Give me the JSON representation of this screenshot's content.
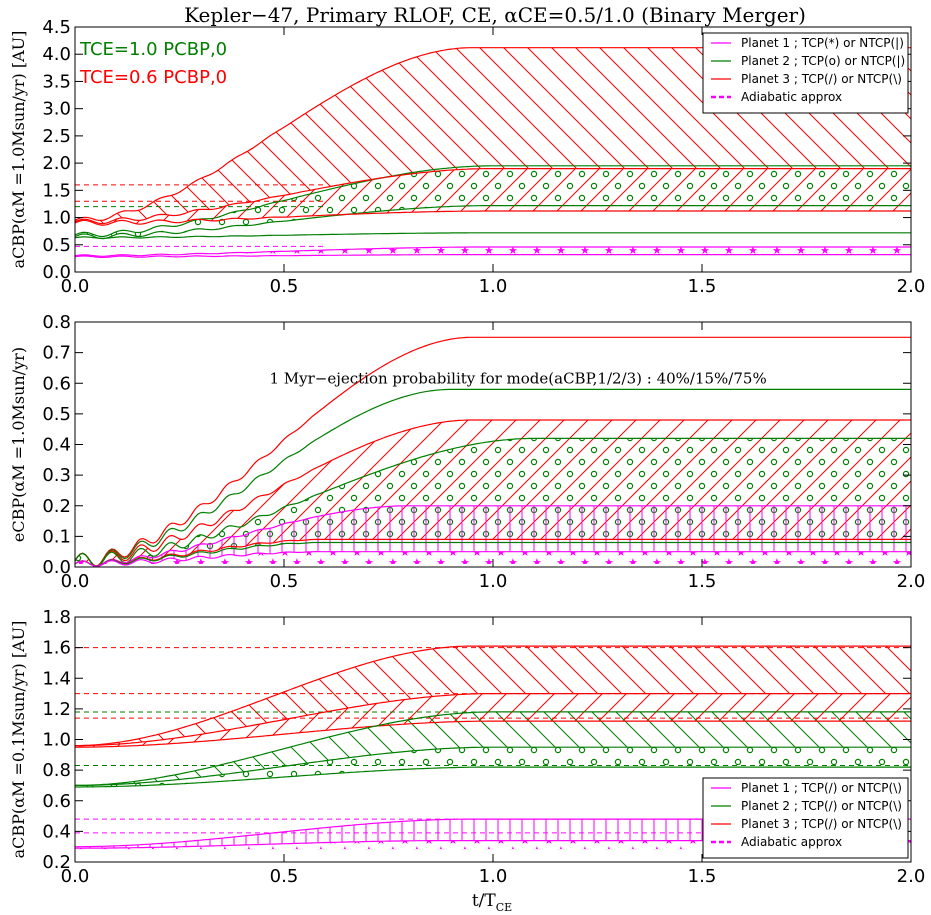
{
  "figure": {
    "title": "Kepler−47, Primary RLOF, CE, αCE=0.5/1.0 (Binary Merger)",
    "xlabel": "t/T",
    "xlabel_sub": "CE"
  },
  "colors": {
    "planet1": "#ff00ff",
    "planet2": "#007f00",
    "planet3": "#ff0000",
    "frame": "#000000",
    "background": "#ffffff"
  },
  "chart_data": [
    {
      "type": "line",
      "panel": "top",
      "ylabel": "aCBP(αM =1.0Msun/yr) [AU]",
      "xlim": [
        0,
        2.0
      ],
      "ylim": [
        0,
        4.5
      ],
      "xticks": [
        "0.0",
        "0.5",
        "1.0",
        "1.5",
        "2.0"
      ],
      "yticks": [
        "0.0",
        "0.5",
        "1.0",
        "1.5",
        "2.0",
        "2.5",
        "3.0",
        "3.5",
        "4.0",
        "4.5"
      ],
      "annotations": [
        "TCE=1.0 PCBP,0",
        "TCE=0.6 PCBP,0"
      ],
      "legend": {
        "placement": "top-right",
        "entries": [
          "Planet 1 ; TCP(*) or NTCP(|)",
          "Planet 2 ; TCP(o) or NTCP(|)",
          "Planet 3 ; TCP(/) or NTCP(\\)",
          "Adiabatic approx"
        ]
      },
      "series": [
        {
          "name": "Planet 1 upper",
          "color": "planet1",
          "start": 0.3,
          "end": 0.46,
          "t_end": 1.0,
          "hatch": "*"
        },
        {
          "name": "Planet 1 lower",
          "color": "planet1",
          "start": 0.28,
          "end": 0.32,
          "t_end": 1.0
        },
        {
          "name": "Planet 2 upper",
          "color": "planet2",
          "start": 0.68,
          "end": 1.95,
          "t_end": 1.0,
          "hatch": "o"
        },
        {
          "name": "Planet 2 mid",
          "color": "planet2",
          "start": 0.65,
          "end": 1.22,
          "t_end": 1.0
        },
        {
          "name": "Planet 2 lower",
          "color": "planet2",
          "start": 0.63,
          "end": 0.72,
          "t_end": 1.0
        },
        {
          "name": "Planet 3 upper",
          "color": "planet3",
          "start": 0.95,
          "end": 4.12,
          "t_end": 0.95,
          "hatch": "\\"
        },
        {
          "name": "Planet 3 mid",
          "color": "planet3",
          "start": 0.92,
          "end": 1.9,
          "t_end": 1.0,
          "hatch": "/"
        },
        {
          "name": "Planet 3 lower",
          "color": "planet3",
          "start": 0.9,
          "end": 1.12,
          "t_end": 1.0
        }
      ],
      "adiabatic": [
        {
          "color": "planet1",
          "y": 0.47,
          "x_end": 0.6
        },
        {
          "color": "planet2",
          "y": 1.2,
          "x_end": 0.6
        },
        {
          "color": "planet3",
          "y": 1.6,
          "x_end": 0.6
        },
        {
          "color": "planet3",
          "y": 1.3,
          "x_end": 0.6
        }
      ]
    },
    {
      "type": "line",
      "panel": "middle",
      "ylabel": "eCBP(αM =1.0Msun/yr)",
      "xlim": [
        0,
        2.0
      ],
      "ylim": [
        0,
        0.8
      ],
      "xticks": [
        "0.0",
        "0.5",
        "1.0",
        "1.5",
        "2.0"
      ],
      "yticks": [
        "0.0",
        "0.1",
        "0.2",
        "0.3",
        "0.4",
        "0.5",
        "0.6",
        "0.7",
        "0.8"
      ],
      "annotation": "1 Myr−ejection probability for mode(aCBP,1/2/3) : 40%/15%/75%",
      "series": [
        {
          "name": "Planet 3 max",
          "color": "planet3",
          "start": 0.02,
          "end": 0.75,
          "t_end": 0.95
        },
        {
          "name": "Planet 2 max",
          "color": "planet2",
          "start": 0.02,
          "end": 0.58,
          "t_end": 0.9
        },
        {
          "name": "Planet 3 mid",
          "color": "planet3",
          "start": 0.02,
          "end": 0.48,
          "t_end": 0.95,
          "hatch": "/"
        },
        {
          "name": "Planet 2 mid",
          "color": "planet2",
          "start": 0.02,
          "end": 0.42,
          "t_end": 1.1,
          "hatch": "o"
        },
        {
          "name": "Planet 1 max",
          "color": "planet1",
          "start": 0.01,
          "end": 0.2,
          "t_end": 0.8,
          "hatch": "|"
        },
        {
          "name": "Planet 3 low",
          "color": "planet3",
          "start": 0.01,
          "end": 0.09,
          "t_end": 0.6
        },
        {
          "name": "Planet 2 low",
          "color": "planet2",
          "start": 0.01,
          "end": 0.08,
          "t_end": 0.6
        },
        {
          "name": "Planet 1 low",
          "color": "planet1",
          "start": 0.01,
          "end": 0.05,
          "t_end": 0.6,
          "hatch": "*"
        }
      ]
    },
    {
      "type": "line",
      "panel": "bottom",
      "ylabel": "aCBP(αM =0.1Msun/yr) [AU]",
      "xlim": [
        0,
        2.0
      ],
      "ylim": [
        0.2,
        1.8
      ],
      "xticks": [
        "0.0",
        "0.5",
        "1.0",
        "1.5",
        "2.0"
      ],
      "yticks": [
        "0.2",
        "0.4",
        "0.6",
        "0.8",
        "1.0",
        "1.2",
        "1.4",
        "1.6",
        "1.8"
      ],
      "legend": {
        "placement": "bottom-right",
        "entries": [
          "Planet 1 ; TCP(/) or NTCP(\\)",
          "Planet 2 ; TCP(/) or NTCP(\\)",
          "Planet 3 ; TCP(/) or NTCP(\\)",
          "Adiabatic approx"
        ]
      },
      "series": [
        {
          "name": "Planet 3 upper",
          "color": "planet3",
          "start": 0.96,
          "end": 1.61,
          "t_end": 0.95,
          "hatch": "\\"
        },
        {
          "name": "Planet 3 mid",
          "color": "planet3",
          "start": 0.96,
          "end": 1.3,
          "t_end": 1.0,
          "hatch": "/"
        },
        {
          "name": "Planet 3 lower",
          "color": "planet3",
          "start": 0.95,
          "end": 1.12,
          "t_end": 1.0
        },
        {
          "name": "Planet 2 upper",
          "color": "planet2",
          "start": 0.7,
          "end": 1.18,
          "t_end": 1.0,
          "hatch": "\\"
        },
        {
          "name": "Planet 2 mid",
          "color": "planet2",
          "start": 0.7,
          "end": 0.95,
          "t_end": 1.0,
          "hatch": "o"
        },
        {
          "name": "Planet 2 lower",
          "color": "planet2",
          "start": 0.69,
          "end": 0.82,
          "t_end": 1.0
        },
        {
          "name": "Planet 1 upper",
          "color": "planet1",
          "start": 0.3,
          "end": 0.48,
          "t_end": 0.95,
          "hatch": "|"
        },
        {
          "name": "Planet 1 lower",
          "color": "planet1",
          "start": 0.29,
          "end": 0.34,
          "t_end": 0.9,
          "hatch": "*"
        }
      ],
      "adiabatic": [
        {
          "color": "planet3",
          "y": 1.6,
          "x_end": 2.0
        },
        {
          "color": "planet3",
          "y": 1.3,
          "x_end": 2.0
        },
        {
          "color": "planet3",
          "y": 1.14,
          "x_end": 2.0
        },
        {
          "color": "planet2",
          "y": 1.18,
          "x_end": 2.0
        },
        {
          "color": "planet2",
          "y": 0.83,
          "x_end": 2.0
        },
        {
          "color": "planet1",
          "y": 0.48,
          "x_end": 2.0
        },
        {
          "color": "planet1",
          "y": 0.39,
          "x_end": 2.0
        }
      ]
    }
  ]
}
